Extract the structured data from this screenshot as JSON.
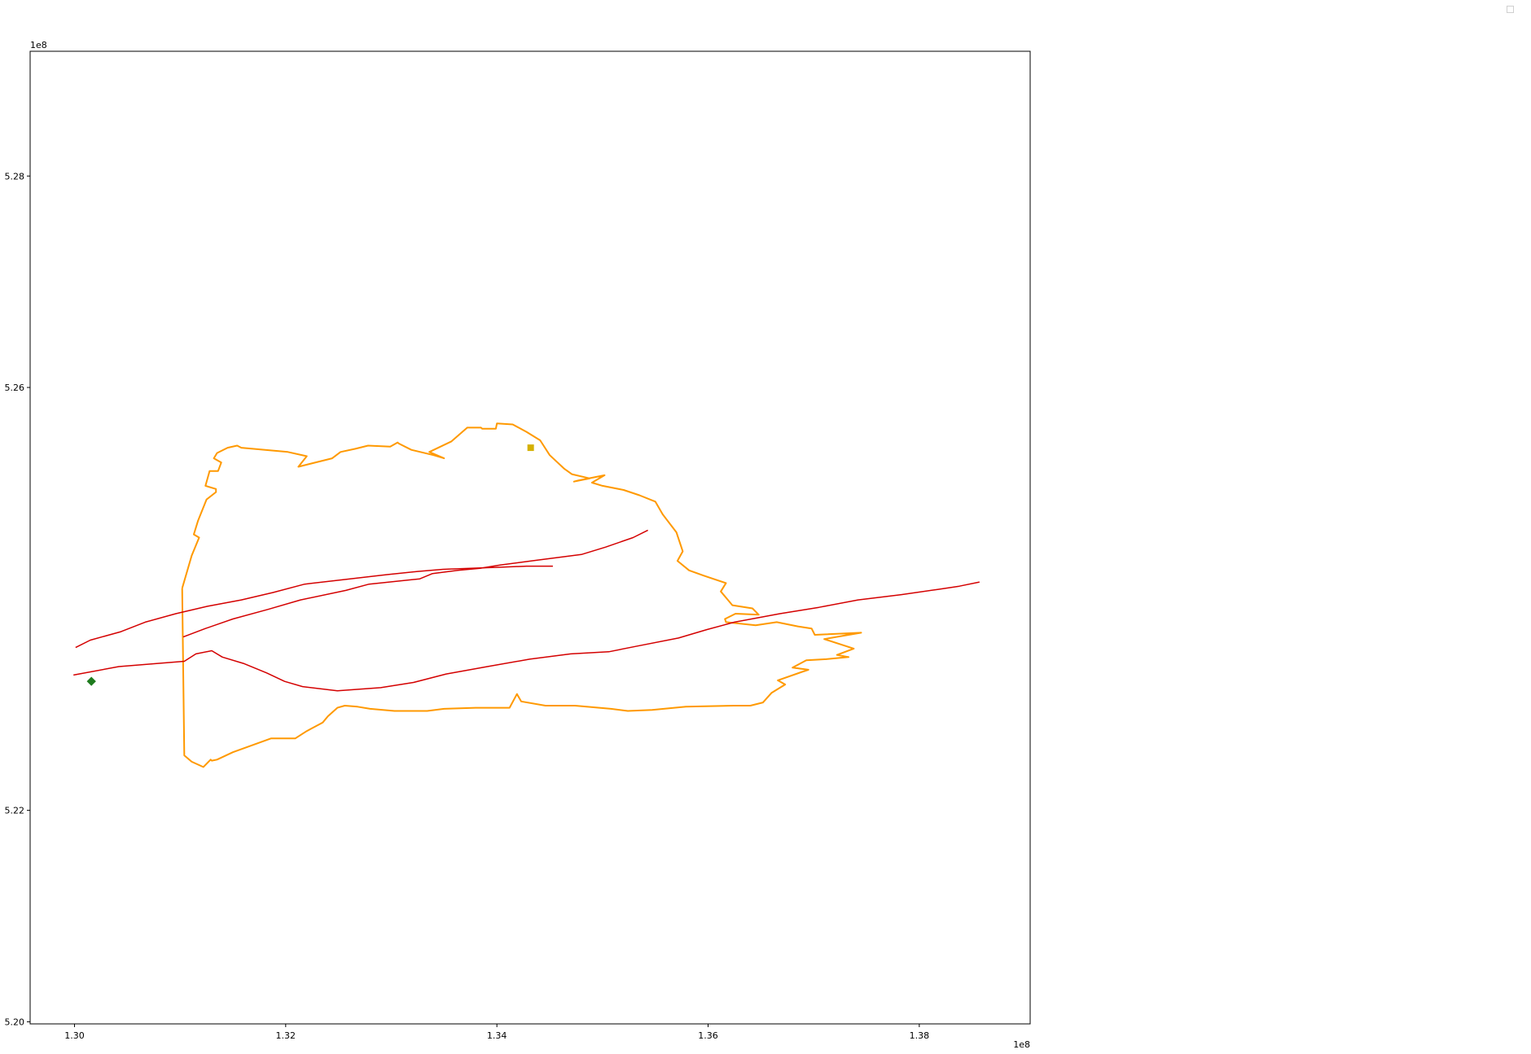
{
  "chart_data": {
    "type": "line",
    "title": "",
    "xlabel": "",
    "ylabel": "",
    "x_offset_label": "1e8",
    "y_offset_label": "1e8",
    "xlim": [
      1.2958,
      1.3905
    ],
    "ylim": [
      5.1998,
      5.2918
    ],
    "x_ticks": [
      {
        "value": 1.3,
        "label": "1.30"
      },
      {
        "value": 1.32,
        "label": "1.32"
      },
      {
        "value": 1.34,
        "label": "1.34"
      },
      {
        "value": 1.36,
        "label": "1.36"
      },
      {
        "value": 1.38,
        "label": "1.38"
      }
    ],
    "y_ticks": [
      {
        "value": 5.2,
        "label": "5.20"
      },
      {
        "value": 5.22,
        "label": "5.22"
      },
      {
        "value": 5.26,
        "label": "5.26"
      },
      {
        "value": 5.28,
        "label": "5.28"
      }
    ],
    "grid": false,
    "legend": {
      "placement": "top-right",
      "entries": []
    },
    "colors": {
      "route": "#d40000",
      "boundary": "#ff9900",
      "start_marker": "#1e7b1e",
      "hub_marker": "#d4b000",
      "axes": "#000000"
    },
    "series": [
      {
        "kind": "boundary",
        "x": [
          1.3102,
          1.3111,
          1.3118,
          1.3113,
          1.3117,
          1.3125,
          1.3134,
          1.3134,
          1.3124,
          1.3128,
          1.3136,
          1.3139,
          1.3132,
          1.3135,
          1.3145,
          1.3154,
          1.3158,
          1.3202,
          1.322,
          1.3212,
          1.3244,
          1.3252,
          1.3266,
          1.3278,
          1.3299,
          1.3306,
          1.3307,
          1.3319,
          1.334,
          1.335,
          1.3336,
          1.3357,
          1.3372,
          1.3385,
          1.3386,
          1.3399,
          1.34,
          1.3415,
          1.3428,
          1.3441,
          1.345,
          1.3464,
          1.3471,
          1.3488,
          1.3473,
          1.3477,
          1.3502,
          1.349,
          1.35,
          1.352,
          1.3535,
          1.355,
          1.3557,
          1.357,
          1.3576,
          1.3571,
          1.3582,
          1.3596,
          1.3617,
          1.3612,
          1.3623,
          1.3642,
          1.3648,
          1.3626,
          1.3616,
          1.3617,
          1.3645,
          1.3665,
          1.3685,
          1.3698,
          1.3701,
          1.3745,
          1.371,
          1.3738,
          1.3722,
          1.3733,
          1.3712,
          1.3693,
          1.368,
          1.3695,
          1.3689,
          1.3666,
          1.3673,
          1.366,
          1.3652,
          1.364,
          1.3624,
          1.3579,
          1.3547,
          1.3524,
          1.3508,
          1.3474,
          1.3446,
          1.3423,
          1.3419,
          1.3412,
          1.338,
          1.335,
          1.3334,
          1.3307,
          1.3303,
          1.328,
          1.3268,
          1.3256,
          1.3249,
          1.324,
          1.3235,
          1.322,
          1.3209,
          1.3186,
          1.315,
          1.3135,
          1.313,
          1.3129,
          1.3122,
          1.3111,
          1.3104,
          1.3102
        ],
        "y": [
          5.241,
          5.2441,
          5.2458,
          5.2461,
          5.2474,
          5.2494,
          5.2501,
          5.2504,
          5.2507,
          5.2521,
          5.2521,
          5.2529,
          5.2533,
          5.2538,
          5.2543,
          5.2545,
          5.2543,
          5.2539,
          5.2535,
          5.2525,
          5.2533,
          5.2539,
          5.2542,
          5.2545,
          5.2544,
          5.2548,
          5.2547,
          5.2541,
          5.2536,
          5.2533,
          5.2539,
          5.2549,
          5.2562,
          5.2562,
          5.2561,
          5.2561,
          5.2566,
          5.2565,
          5.2558,
          5.255,
          5.2536,
          5.2523,
          5.2518,
          5.2514,
          5.2511,
          5.2512,
          5.2517,
          5.251,
          5.2507,
          5.2503,
          5.2498,
          5.2492,
          5.248,
          5.2463,
          5.2445,
          5.2436,
          5.2427,
          5.2422,
          5.2415,
          5.2407,
          5.2394,
          5.2391,
          5.2385,
          5.2386,
          5.2381,
          5.2378,
          5.2375,
          5.2378,
          5.2374,
          5.2372,
          5.2366,
          5.2368,
          5.2362,
          5.2353,
          5.2347,
          5.2345,
          5.2343,
          5.2342,
          5.2335,
          5.2333,
          5.2331,
          5.2323,
          5.2319,
          5.2311,
          5.2302,
          5.2299,
          5.2299,
          5.2298,
          5.2295,
          5.2294,
          5.2296,
          5.2299,
          5.2299,
          5.2303,
          5.231,
          5.2297,
          5.2297,
          5.2296,
          5.2294,
          5.2294,
          5.2294,
          5.2296,
          5.2298,
          5.2299,
          5.2297,
          5.2289,
          5.2283,
          5.2275,
          5.2268,
          5.2268,
          5.2255,
          5.2248,
          5.2247,
          5.2248,
          5.2241,
          5.2246,
          5.2252,
          5.241
        ]
      },
      {
        "kind": "route",
        "x": [
          1.2999,
          1.3042,
          1.3104,
          1.3115,
          1.313,
          1.314,
          1.316,
          1.3182,
          1.3199,
          1.3216,
          1.3249,
          1.329,
          1.3321,
          1.3352,
          1.3391,
          1.3431,
          1.347,
          1.3506,
          1.3531,
          1.3572,
          1.3599,
          1.3625,
          1.3668,
          1.3705,
          1.3742,
          1.3783,
          1.3818,
          1.3838,
          1.3857
        ],
        "y": [
          5.2328,
          5.2336,
          5.2341,
          5.2348,
          5.2351,
          5.2345,
          5.2339,
          5.233,
          5.2322,
          5.2317,
          5.2313,
          5.2316,
          5.2321,
          5.2329,
          5.2336,
          5.2343,
          5.2348,
          5.235,
          5.2355,
          5.2363,
          5.2371,
          5.2378,
          5.2386,
          5.2392,
          5.2399,
          5.2404,
          5.2409,
          5.2412,
          5.2416
        ]
      },
      {
        "kind": "route",
        "x": [
          1.3001,
          1.3015,
          1.3044,
          1.3067,
          1.3096,
          1.3126,
          1.3158,
          1.3188,
          1.3218,
          1.3261,
          1.3296,
          1.3325,
          1.3349,
          1.3375,
          1.3404,
          1.3428,
          1.3453
        ],
        "y": [
          5.2354,
          5.2361,
          5.2369,
          5.2378,
          5.2386,
          5.2393,
          5.2399,
          5.2406,
          5.2414,
          5.2419,
          5.2423,
          5.2426,
          5.2428,
          5.2429,
          5.243,
          5.2431,
          5.2431
        ]
      },
      {
        "kind": "route",
        "x": [
          1.3103,
          1.3124,
          1.315,
          1.3183,
          1.3214,
          1.3257,
          1.3279,
          1.3327,
          1.3339,
          1.3363,
          1.3384,
          1.3403,
          1.3433,
          1.348,
          1.3503,
          1.3529,
          1.3543
        ],
        "y": [
          5.2364,
          5.2372,
          5.2381,
          5.239,
          5.2399,
          5.2408,
          5.2414,
          5.2419,
          5.2424,
          5.2427,
          5.2429,
          5.2432,
          5.2436,
          5.2442,
          5.2449,
          5.2458,
          5.2465
        ]
      }
    ],
    "markers": [
      {
        "kind": "start",
        "x": 1.3016,
        "y": 5.2322
      },
      {
        "kind": "hub",
        "x": 1.3432,
        "y": 5.2543
      }
    ]
  }
}
